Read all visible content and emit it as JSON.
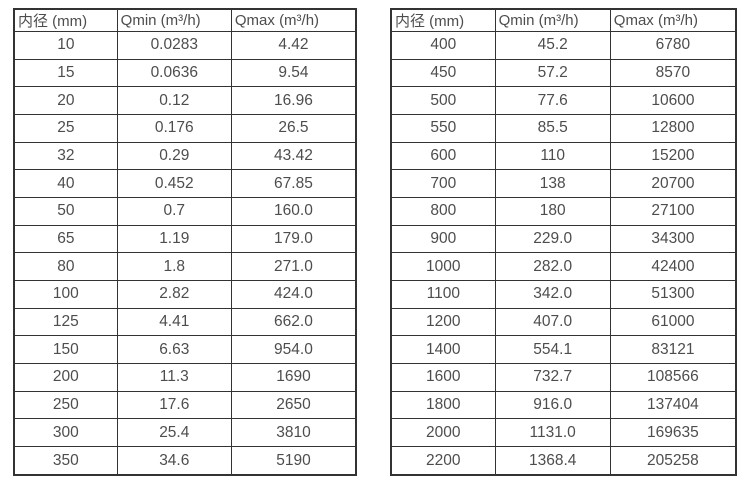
{
  "colors": {
    "background": "#ffffff",
    "text": "#4d4d4d",
    "border": "#333333"
  },
  "tables": [
    {
      "name": "small-diameter-flow-table",
      "headers": [
        "内径 (mm)",
        "Qmin (m³/h)",
        "Qmax (m³/h)"
      ],
      "rows": [
        [
          "10",
          "0.0283",
          "4.42"
        ],
        [
          "15",
          "0.0636",
          "9.54"
        ],
        [
          "20",
          "0.12",
          "16.96"
        ],
        [
          "25",
          "0.176",
          "26.5"
        ],
        [
          "32",
          "0.29",
          "43.42"
        ],
        [
          "40",
          "0.452",
          "67.85"
        ],
        [
          "50",
          "0.7",
          "160.0"
        ],
        [
          "65",
          "1.19",
          "179.0"
        ],
        [
          "80",
          "1.8",
          "271.0"
        ],
        [
          "100",
          "2.82",
          "424.0"
        ],
        [
          "125",
          "4.41",
          "662.0"
        ],
        [
          "150",
          "6.63",
          "954.0"
        ],
        [
          "200",
          "11.3",
          "1690"
        ],
        [
          "250",
          "17.6",
          "2650"
        ],
        [
          "300",
          "25.4",
          "3810"
        ],
        [
          "350",
          "34.6",
          "5190"
        ]
      ]
    },
    {
      "name": "large-diameter-flow-table",
      "headers": [
        "内径 (mm)",
        "Qmin (m³/h)",
        "Qmax (m³/h)"
      ],
      "rows": [
        [
          "400",
          "45.2",
          "6780"
        ],
        [
          "450",
          "57.2",
          "8570"
        ],
        [
          "500",
          "77.6",
          "10600"
        ],
        [
          "550",
          "85.5",
          "12800"
        ],
        [
          "600",
          "110",
          "15200"
        ],
        [
          "700",
          "138",
          "20700"
        ],
        [
          "800",
          "180",
          "27100"
        ],
        [
          "900",
          "229.0",
          "34300"
        ],
        [
          "1000",
          "282.0",
          "42400"
        ],
        [
          "1100",
          "342.0",
          "51300"
        ],
        [
          "1200",
          "407.0",
          "61000"
        ],
        [
          "1400",
          "554.1",
          "83121"
        ],
        [
          "1600",
          "732.7",
          "108566"
        ],
        [
          "1800",
          "916.0",
          "137404"
        ],
        [
          "2000",
          "1131.0",
          "169635"
        ],
        [
          "2200",
          "1368.4",
          "205258"
        ]
      ]
    }
  ]
}
